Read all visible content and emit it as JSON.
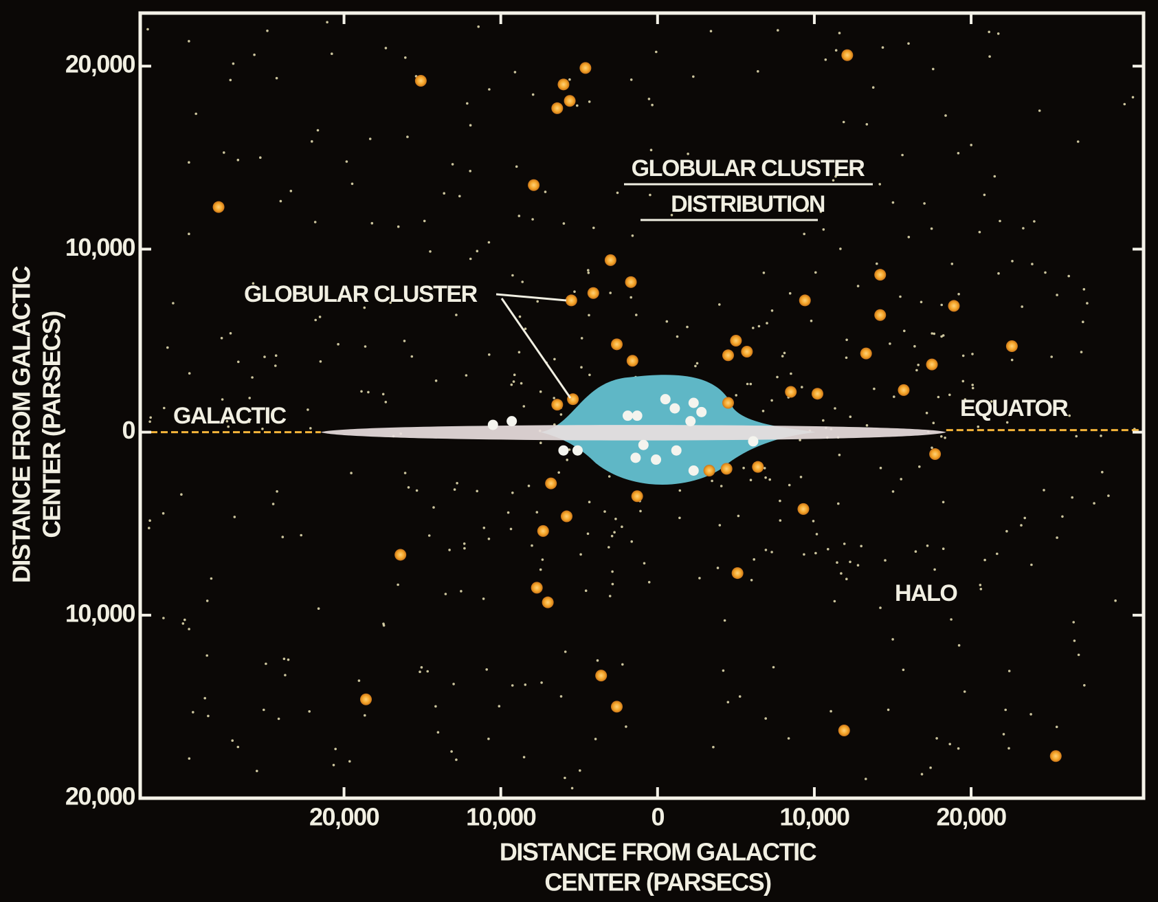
{
  "chart_data": {
    "type": "scatter",
    "title": [
      "GLOBULAR CLUSTER",
      "DISTRIBUTION"
    ],
    "xlabel": [
      "DISTANCE FROM GALACTIC",
      "CENTER (PARSECS)"
    ],
    "ylabel": [
      "DISTANCE FROM GALACTIC",
      "CENTER (PARSECS)"
    ],
    "annotations": [
      "GLOBULAR CLUSTER",
      "GALACTIC",
      "EQUATOR",
      "HALO"
    ],
    "xlim": [
      -33000,
      31000
    ],
    "ylim": [
      -20000,
      22900
    ],
    "xticks": [
      {
        "value": -20000,
        "label": "20,000"
      },
      {
        "value": -10000,
        "label": "10,000"
      },
      0,
      {
        "value": 10000,
        "label": "10,000"
      },
      {
        "value": 20000,
        "label": "20,000"
      }
    ],
    "yticks": [
      {
        "value": -20000,
        "label": "20,000"
      },
      {
        "value": -10000,
        "label": "10,000"
      },
      0,
      {
        "value": 10000,
        "label": "10,000"
      },
      {
        "value": 20000,
        "label": "20,000"
      }
    ],
    "series": [
      {
        "color": "#f5a62a",
        "x": [
          -28000,
          -15100,
          -6000,
          -4600,
          -5600,
          -6400,
          12100,
          -7900,
          -3000,
          -1700,
          -4100,
          -5500,
          14200,
          9400,
          18900,
          14200,
          22600,
          -2600,
          -1600,
          5000,
          4500,
          5700,
          13300,
          17500,
          8500,
          10200,
          15700,
          -6400,
          -5400,
          4500,
          17700,
          -6800,
          -5800,
          -7300,
          -1300,
          3300,
          4400,
          6400,
          9300,
          -16400,
          5100,
          -7700,
          -7000,
          -3600,
          -2600,
          -18600,
          11900,
          25400
        ],
        "values": [
          12300,
          19200,
          19000,
          19900,
          18100,
          17700,
          20600,
          13500,
          9400,
          8200,
          7600,
          7200,
          8600,
          7200,
          6900,
          6400,
          4700,
          4800,
          3900,
          5000,
          4200,
          4400,
          4300,
          3700,
          2200,
          2100,
          2300,
          1500,
          1800,
          1600,
          -1200,
          -2800,
          -4600,
          -5400,
          -3500,
          -2100,
          -2000,
          -1900,
          -4200,
          -6700,
          -7700,
          -8500,
          -9300,
          -13300,
          -15000,
          -14600,
          -16300,
          -17700
        ]
      },
      {
        "color": "#f4f4ee",
        "x": [
          -1900,
          -1300,
          500,
          1100,
          2300,
          2800,
          2100,
          -10500,
          -9300,
          -6000,
          -5100,
          -900,
          -100,
          1200,
          2300,
          -1400,
          6100
        ],
        "values": [
          900,
          900,
          1800,
          1300,
          1600,
          1100,
          600,
          400,
          600,
          -1000,
          -1000,
          -700,
          -1500,
          -1000,
          -2100,
          -1400,
          -500
        ]
      }
    ]
  }
}
